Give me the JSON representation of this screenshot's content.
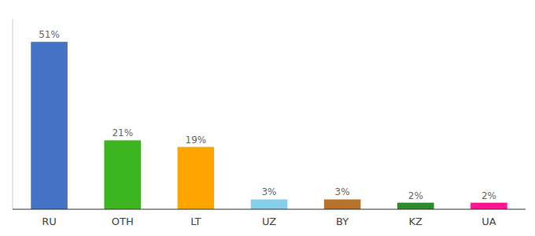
{
  "chart_data": {
    "type": "bar",
    "categories": [
      "RU",
      "OTH",
      "LT",
      "UZ",
      "BY",
      "KZ",
      "UA"
    ],
    "values": [
      51,
      21,
      19,
      3,
      3,
      2,
      2
    ],
    "value_labels": [
      "51%",
      "21%",
      "19%",
      "3%",
      "3%",
      "2%",
      "2%"
    ],
    "colors": [
      "#4472C4",
      "#3CB521",
      "#FFA500",
      "#87CEEB",
      "#B8732A",
      "#2D8A2D",
      "#FF1493"
    ],
    "ylim": [
      0,
      58
    ],
    "data_labels": true,
    "tick_labels": "x",
    "grid": false
  }
}
